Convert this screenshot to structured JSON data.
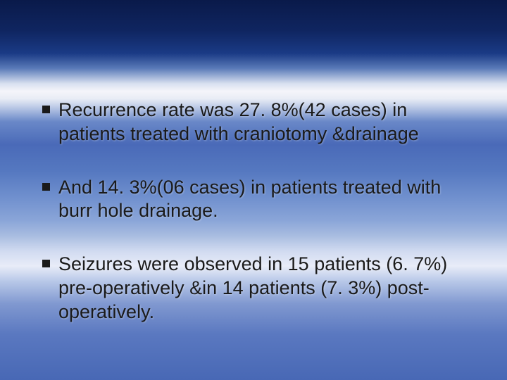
{
  "slide": {
    "bullets": [
      {
        "text": "Recurrence rate was 27. 8%(42 cases) in patients treated with craniotomy &drainage"
      },
      {
        "text": "And 14. 3%(06 cases) in patients treated with burr hole drainage."
      },
      {
        "text": "Seizures were observed in 15 patients (6. 7%) pre-operatively &in 14 patients (7. 3%) post-operatively."
      }
    ],
    "text_color": "#1a1a1a",
    "bullet_color": "#1a1a1a",
    "font_size_pt": 20,
    "background_gradient_stops": [
      "#0a1a4a",
      "#0f2560",
      "#1a3a85",
      "#5a7ab8",
      "#d8e0f0",
      "#f5f5fa",
      "#e8ecf5",
      "#c0cde8",
      "#6a88c8",
      "#4a6ab8",
      "#5578c0",
      "#7090ce",
      "#8aa5d8",
      "#a8bce0",
      "#d0daf0",
      "#e8ecf8",
      "#b8c8e8",
      "#8098d0",
      "#5a78c0",
      "#4868b5"
    ]
  }
}
